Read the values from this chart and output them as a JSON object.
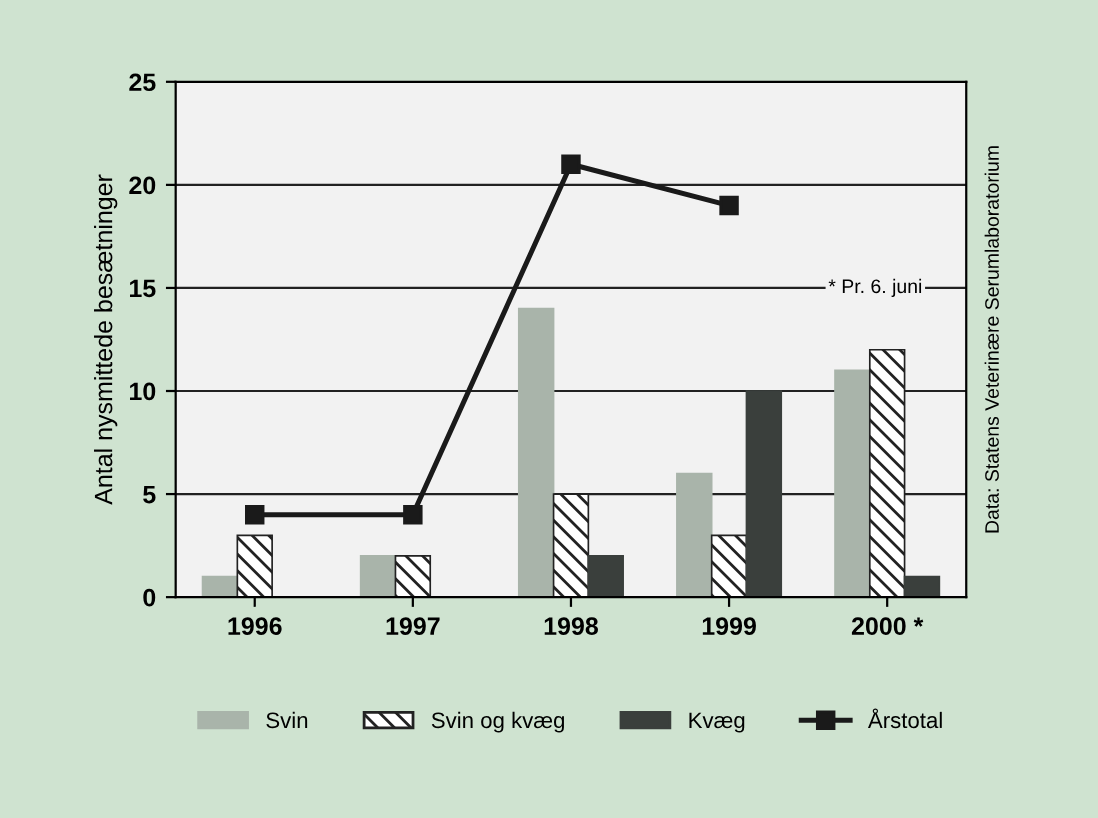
{
  "chart_data": {
    "type": "bar",
    "ylabel": "Antal nysmittede besætninger",
    "categories": [
      "1996",
      "1997",
      "1998",
      "1999",
      "2000 *"
    ],
    "series": [
      {
        "name": "Svin",
        "color": "#a9b4aa",
        "values": [
          1,
          2,
          14,
          6,
          11
        ]
      },
      {
        "name": "Svin og kvæg",
        "color": "#222222",
        "values": [
          3,
          2,
          5,
          3,
          12
        ]
      },
      {
        "name": "Kvæg",
        "color": "#3a3f3c",
        "values": [
          null,
          null,
          2,
          10,
          1
        ]
      },
      {
        "name": "Årstotal",
        "type": "line",
        "color": "#1a1a1a",
        "values": [
          4,
          4,
          21,
          19,
          null
        ]
      }
    ],
    "ylim": [
      0,
      25
    ],
    "yticks": [
      0,
      5,
      10,
      15,
      20,
      25
    ],
    "grid": "y",
    "legend": "bottom",
    "marker": "square",
    "annotations": [
      "* Pr. 6. juni",
      "Data: Statens Veterinære Serumlaboratorium"
    ]
  }
}
